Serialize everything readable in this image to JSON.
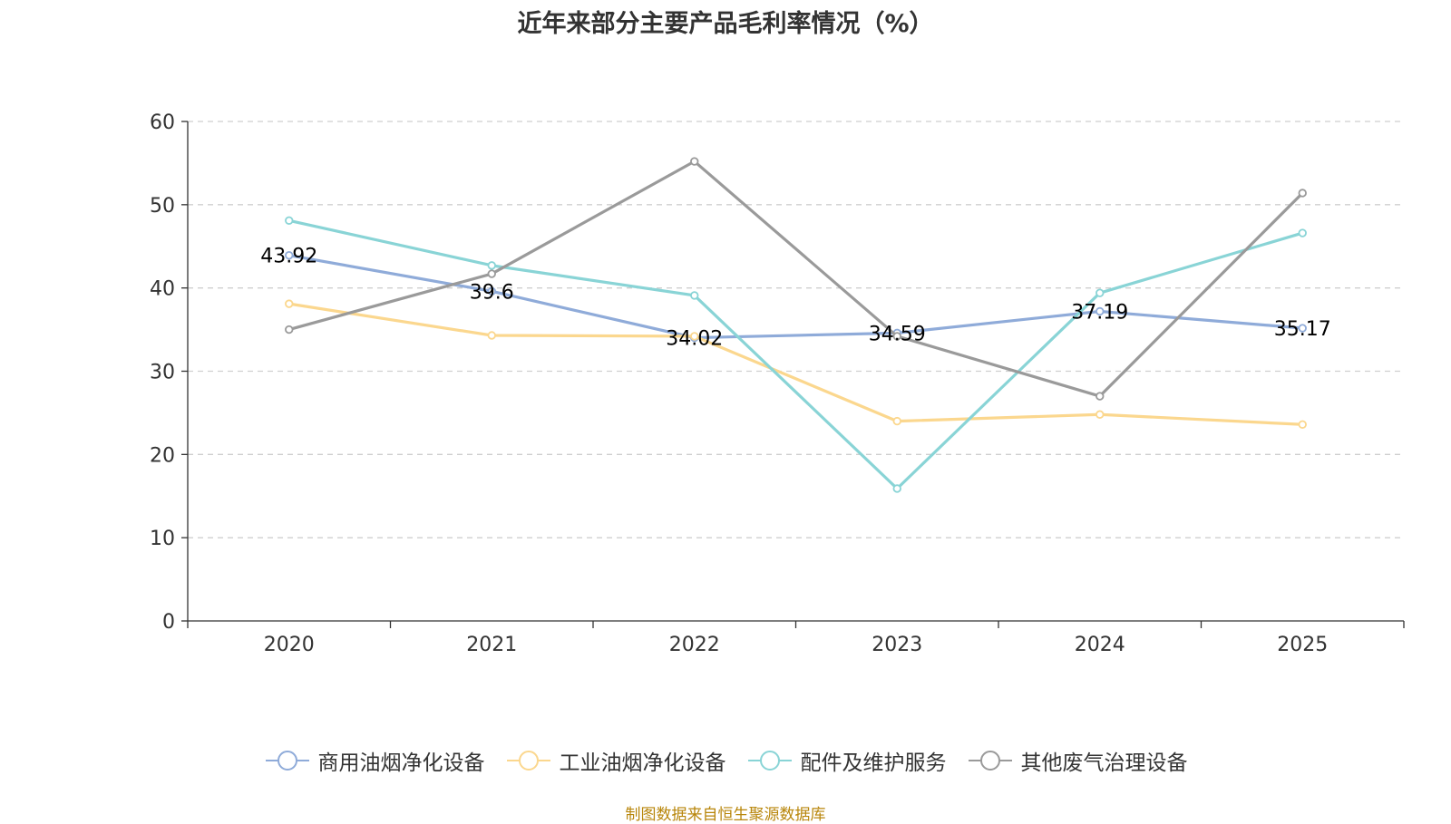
{
  "chart_data": {
    "type": "line",
    "title": "近年来部分主要产品毛利率情况（%）",
    "categories": [
      "2020",
      "2021",
      "2022",
      "2023",
      "2024",
      "2025"
    ],
    "ylim": [
      0,
      60
    ],
    "yticks": [
      "0",
      "10",
      "20",
      "30",
      "40",
      "50",
      "60"
    ],
    "grid": true,
    "legend_position": "bottom",
    "series": [
      {
        "name": "商用油烟净化设备",
        "color": "#8fabd9",
        "values": [
          43.92,
          39.6,
          34.02,
          34.59,
          37.19,
          35.17
        ],
        "labels": [
          "43.92",
          "39.6",
          "34.02",
          "34.59",
          "37.19",
          "35.17"
        ]
      },
      {
        "name": "工业油烟净化设备",
        "color": "#fbd78e",
        "values": [
          38.1,
          34.3,
          34.2,
          24.0,
          24.8,
          23.6
        ]
      },
      {
        "name": "配件及维护服务",
        "color": "#89d4d6",
        "values": [
          48.1,
          42.7,
          39.1,
          15.9,
          39.4,
          46.6
        ]
      },
      {
        "name": "其他废气治理设备",
        "color": "#9a9a9a",
        "values": [
          35.0,
          41.7,
          55.2,
          34.2,
          27.0,
          51.4
        ]
      }
    ]
  },
  "footer": {
    "source": "制图数据来自恒生聚源数据库"
  }
}
